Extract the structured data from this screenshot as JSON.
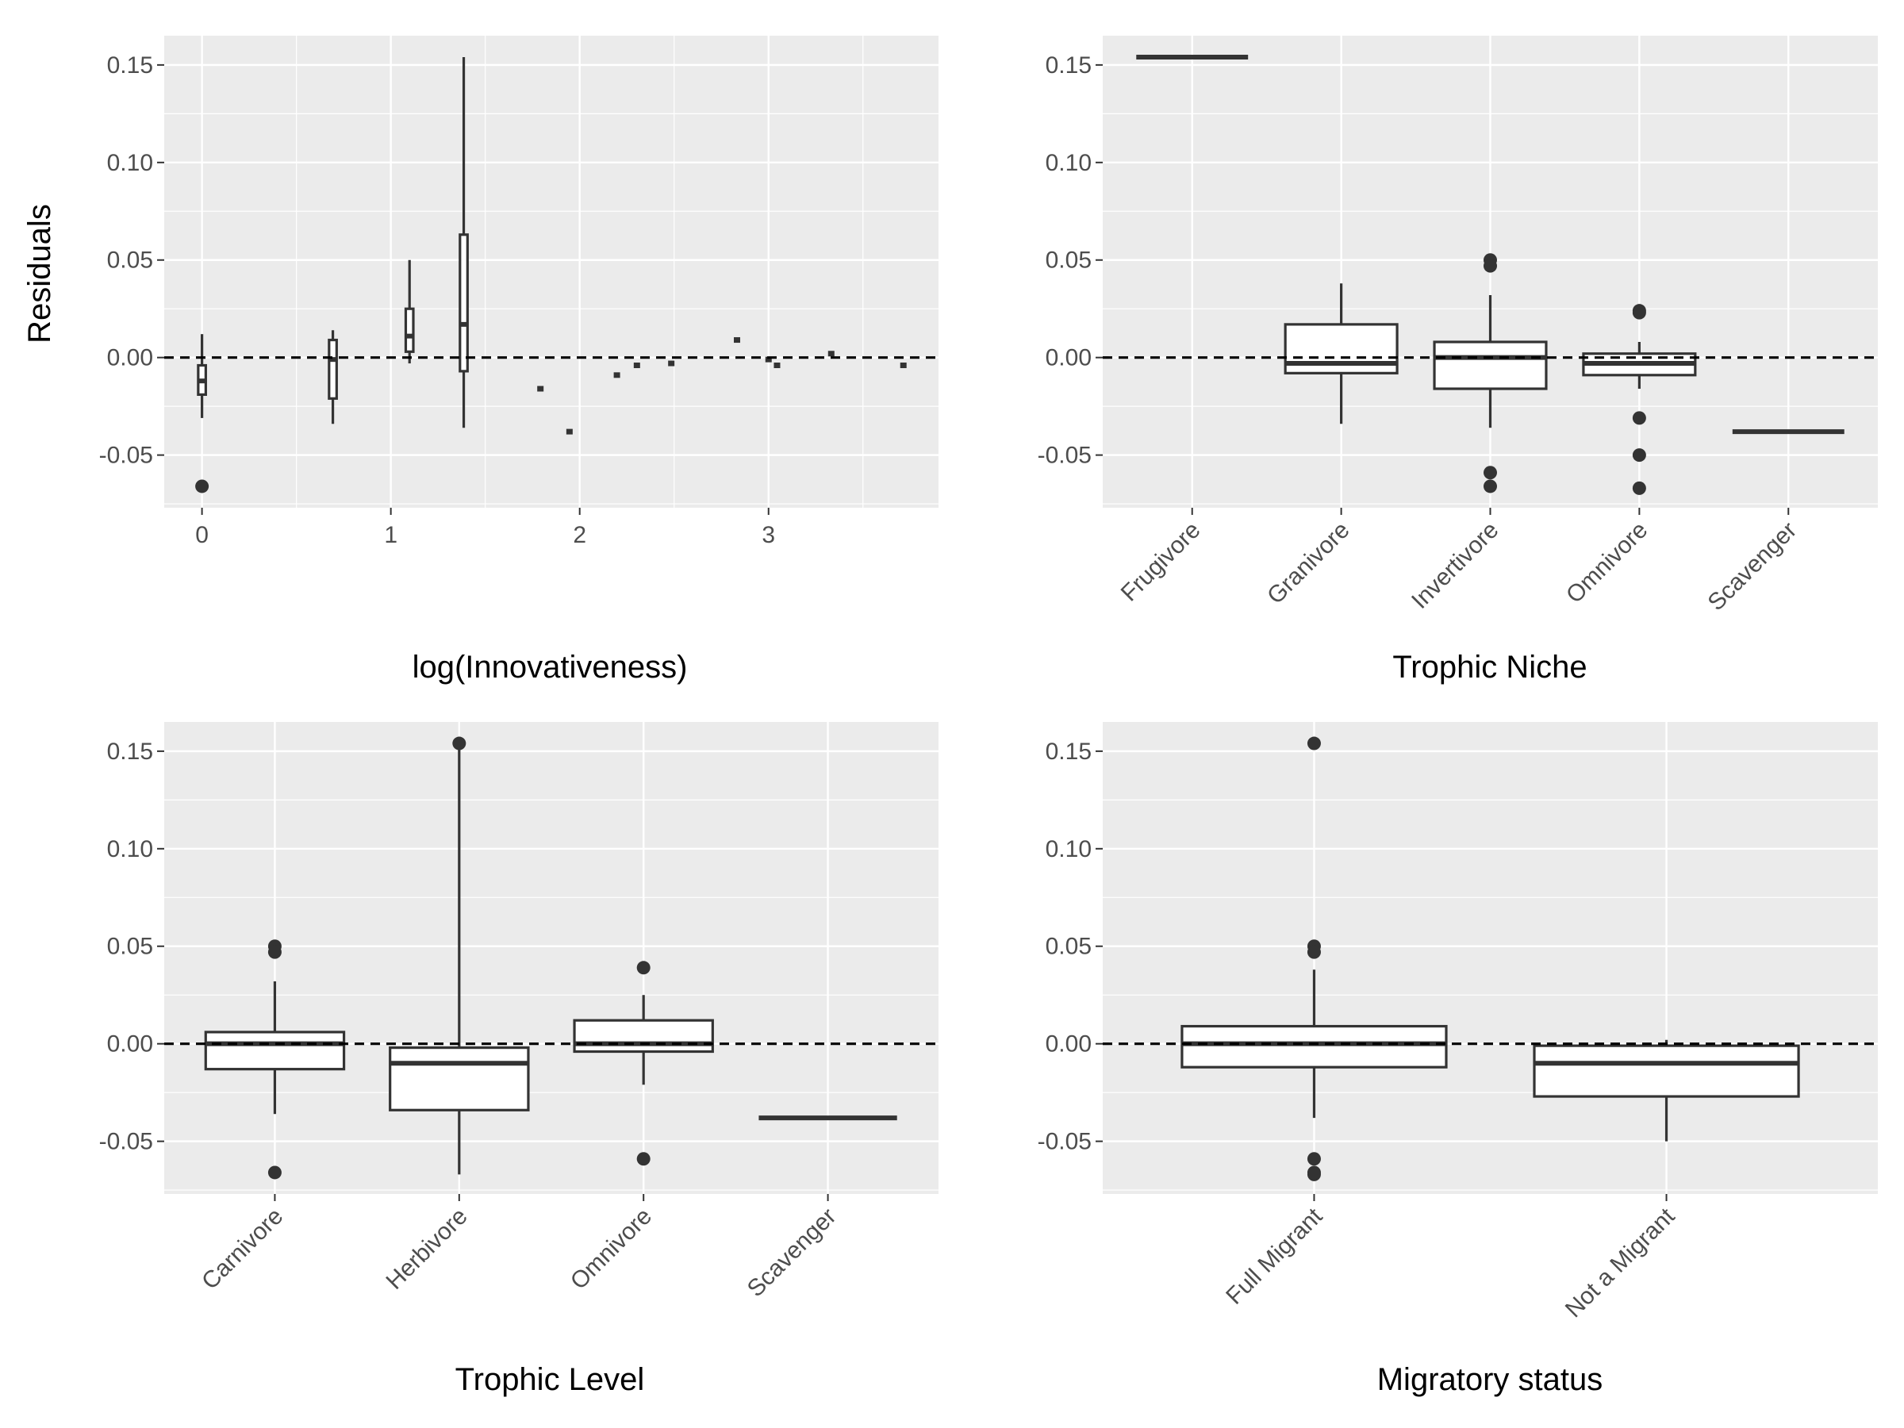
{
  "figure": {
    "ylabel": "Residuals",
    "colors": {
      "panel_background": "#ebebeb",
      "grid_major": "#ffffff",
      "box_fill": "#ffffff",
      "box_line": "#333333",
      "reference_line": "#000000",
      "tick_text": "#4d4d4d"
    }
  },
  "chart_data": [
    {
      "type": "box",
      "xlabel": "log(Innovativeness)",
      "ylabel": "Residuals",
      "x_axis": "numeric",
      "xlim": [
        -0.2,
        3.9
      ],
      "x_ticks": [
        0,
        1,
        2,
        3
      ],
      "x_tick_labels": [
        "0",
        "1",
        "2",
        "3"
      ],
      "ylim": [
        -0.077,
        0.165
      ],
      "y_ticks": [
        -0.05,
        0,
        0.05,
        0.1,
        0.15
      ],
      "y_tick_labels": [
        "-0.05",
        "0.00",
        "0.05",
        "0.10",
        "0.15"
      ],
      "reference_line": 0,
      "boxes": [
        {
          "x": 0.0,
          "width": 0.04,
          "min": -0.031,
          "q1": -0.019,
          "median": -0.012,
          "q3": -0.004,
          "max": 0.012,
          "outliers": [
            -0.066
          ]
        },
        {
          "x": 0.693,
          "width": 0.04,
          "min": -0.034,
          "q1": -0.021,
          "median": -0.001,
          "q3": 0.009,
          "max": 0.014,
          "outliers": []
        },
        {
          "x": 1.099,
          "width": 0.04,
          "min": -0.003,
          "q1": 0.003,
          "median": 0.011,
          "q3": 0.025,
          "max": 0.05,
          "outliers": []
        },
        {
          "x": 1.386,
          "width": 0.04,
          "min": -0.036,
          "q1": -0.007,
          "median": 0.017,
          "q3": 0.063,
          "max": 0.154,
          "outliers": []
        },
        {
          "x": 1.792,
          "width": 0.03,
          "median": -0.016
        },
        {
          "x": 1.946,
          "width": 0.03,
          "median": -0.038
        },
        {
          "x": 2.197,
          "width": 0.03,
          "median": -0.009
        },
        {
          "x": 2.303,
          "width": 0.03,
          "median": -0.004
        },
        {
          "x": 2.485,
          "width": 0.03,
          "median": -0.003
        },
        {
          "x": 2.833,
          "width": 0.03,
          "median": 0.009
        },
        {
          "x": 3.0,
          "width": 0.03,
          "median": -0.001
        },
        {
          "x": 3.045,
          "width": 0.03,
          "median": -0.004
        },
        {
          "x": 3.332,
          "width": 0.03,
          "median": 0.002
        },
        {
          "x": 3.714,
          "width": 0.03,
          "median": -0.004
        }
      ]
    },
    {
      "type": "box",
      "xlabel": "Trophic Niche",
      "ylabel": "",
      "x_axis": "categorical",
      "categories": [
        "Frugivore",
        "Granivore",
        "Invertivore",
        "Omnivore",
        "Scavenger"
      ],
      "ylim": [
        -0.077,
        0.165
      ],
      "y_ticks": [
        -0.05,
        0,
        0.05,
        0.1,
        0.15
      ],
      "y_tick_labels": [
        "-0.05",
        "0.00",
        "0.05",
        "0.10",
        "0.15"
      ],
      "reference_line": 0,
      "boxes": [
        {
          "category": "Frugivore",
          "median": 0.154
        },
        {
          "category": "Granivore",
          "min": -0.034,
          "q1": -0.008,
          "median": -0.003,
          "q3": 0.017,
          "max": 0.038,
          "outliers": []
        },
        {
          "category": "Invertivore",
          "min": -0.036,
          "q1": -0.016,
          "median": 0.0,
          "q3": 0.008,
          "max": 0.032,
          "outliers": [
            0.05,
            0.047,
            -0.059,
            -0.066
          ]
        },
        {
          "category": "Omnivore",
          "min": -0.016,
          "q1": -0.009,
          "median": -0.003,
          "q3": 0.002,
          "max": 0.008,
          "outliers": [
            0.024,
            0.023,
            -0.031,
            -0.05,
            -0.067
          ]
        },
        {
          "category": "Scavenger",
          "median": -0.038
        }
      ]
    },
    {
      "type": "box",
      "xlabel": "Trophic Level",
      "ylabel": "",
      "x_axis": "categorical",
      "categories": [
        "Carnivore",
        "Herbivore",
        "Omnivore",
        "Scavenger"
      ],
      "ylim": [
        -0.077,
        0.165
      ],
      "y_ticks": [
        -0.05,
        0,
        0.05,
        0.1,
        0.15
      ],
      "y_tick_labels": [
        "-0.05",
        "0.00",
        "0.05",
        "0.10",
        "0.15"
      ],
      "reference_line": 0,
      "boxes": [
        {
          "category": "Carnivore",
          "min": -0.036,
          "q1": -0.013,
          "median": 0.0,
          "q3": 0.006,
          "max": 0.032,
          "outliers": [
            0.05,
            0.047,
            -0.066
          ]
        },
        {
          "category": "Herbivore",
          "min": -0.067,
          "q1": -0.034,
          "median": -0.01,
          "q3": -0.002,
          "max": 0.154,
          "outliers": [
            0.154
          ]
        },
        {
          "category": "Omnivore",
          "min": -0.021,
          "q1": -0.004,
          "median": 0.0,
          "q3": 0.012,
          "max": 0.025,
          "outliers": [
            0.039,
            -0.059
          ]
        },
        {
          "category": "Scavenger",
          "median": -0.038
        }
      ]
    },
    {
      "type": "box",
      "xlabel": "Migratory status",
      "ylabel": "",
      "x_axis": "categorical",
      "categories": [
        "Full Migrant",
        "Not a Migrant"
      ],
      "ylim": [
        -0.077,
        0.165
      ],
      "y_ticks": [
        -0.05,
        0,
        0.05,
        0.1,
        0.15
      ],
      "y_tick_labels": [
        "-0.05",
        "0.00",
        "0.05",
        "0.10",
        "0.15"
      ],
      "reference_line": 0,
      "boxes": [
        {
          "category": "Full Migrant",
          "min": -0.038,
          "q1": -0.012,
          "median": 0.0,
          "q3": 0.009,
          "max": 0.038,
          "outliers": [
            0.154,
            0.05,
            0.047,
            -0.059,
            -0.066,
            -0.067
          ]
        },
        {
          "category": "Not a Migrant",
          "min": -0.05,
          "q1": -0.027,
          "median": -0.01,
          "q3": -0.001,
          "max": 0.002,
          "outliers": []
        }
      ]
    }
  ]
}
